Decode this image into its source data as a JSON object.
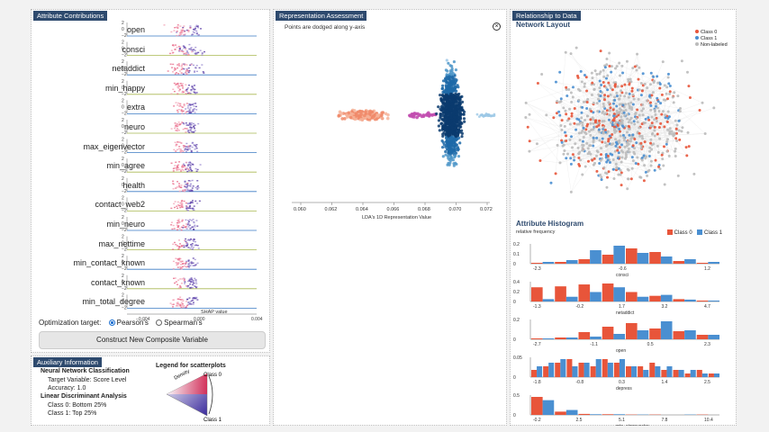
{
  "attr_panel": {
    "title": "Attribute Contributions",
    "attributes": [
      "open",
      "consci",
      "netaddict",
      "min_happy",
      "extra",
      "neuro",
      "max_eigenvector",
      "min_agree",
      "health",
      "contact_web2",
      "min_neuro",
      "max_nettime",
      "min_contact_known",
      "contact_known",
      "min_total_degree"
    ],
    "y_ticks": [
      "2",
      "0",
      "−2"
    ],
    "x_ticks": [
      "−0.004",
      "0.000",
      "0.004"
    ],
    "x_label": "SHAP value",
    "optimization_label": "Optimization target:",
    "option_pearson": "Pearson's",
    "option_spearman": "Spearman's",
    "selected_option": "Pearson's",
    "construct_button": "Construct New Composite Variable"
  },
  "aux_panel": {
    "title": "Auxiliary Information",
    "nn_heading": "Neural Network Classification",
    "nn_target": "Target Variable: Score Level",
    "nn_accuracy": "Accuracy: 1.0",
    "lda_heading": "Linear Discriminant Analysis",
    "lda_class0": "Class 0: Bottom 25%",
    "lda_class1": "Class 1: Top 25%",
    "legend_title": "Legend for scatterplots",
    "legend_density": "Density",
    "legend_class0": "Class 0",
    "legend_class1": "Class 1"
  },
  "rep_panel": {
    "title": "Representation Assessment",
    "note": "Points are dodged along y-axis",
    "close_icon_label": "×",
    "x_ticks": [
      "0.060",
      "0.062",
      "0.064",
      "0.066",
      "0.068",
      "0.070",
      "0.072"
    ],
    "x_label": "LDA's 1D Representation Value"
  },
  "rel_panel": {
    "title": "Relationship to Data",
    "network_heading": "Network Layout",
    "legend": [
      {
        "label": "Class 0",
        "color": "#e8553a"
      },
      {
        "label": "Class 1",
        "color": "#4a8fd1"
      },
      {
        "label": "Non-labeled",
        "color": "#bbbbbb"
      }
    ],
    "histogram_heading": "Attribute Histogram",
    "y_axis_label": "relative frequency",
    "hist_legend_class0": "Class 0",
    "hist_legend_class1": "Class 1",
    "histograms": [
      {
        "name": "consci",
        "x_ticks": [
          "-2.3",
          "-0.6",
          "1.2"
        ],
        "y_ticks": [
          "0.2",
          "0.1",
          "0"
        ],
        "class0": [
          0.01,
          0.02,
          0.05,
          0.1,
          0.17,
          0.13,
          0.03,
          0.01
        ],
        "class1": [
          0.02,
          0.04,
          0.15,
          0.2,
          0.12,
          0.08,
          0.05,
          0.02
        ]
      },
      {
        "name": "netaddict",
        "x_ticks": [
          "-1.3",
          "-0.2",
          "1.7",
          "3.2",
          "4.7"
        ],
        "y_ticks": [
          "0.4",
          "0.2",
          "0"
        ],
        "class0": [
          0.3,
          0.32,
          0.36,
          0.38,
          0.2,
          0.12,
          0.05,
          0.02
        ],
        "class1": [
          0.05,
          0.1,
          0.2,
          0.3,
          0.1,
          0.14,
          0.04,
          0.02
        ]
      },
      {
        "name": "open",
        "x_ticks": [
          "-2.7",
          "-1.1",
          "0.5",
          "2.3"
        ],
        "y_ticks": [
          "0.2",
          "0"
        ],
        "class0": [
          0.01,
          0.02,
          0.08,
          0.14,
          0.18,
          0.12,
          0.09,
          0.05
        ],
        "class1": [
          0.01,
          0.02,
          0.03,
          0.06,
          0.1,
          0.2,
          0.1,
          0.05
        ]
      },
      {
        "name": "depress",
        "x_ticks": [
          "-1.8",
          "-0.8",
          "0.3",
          "1.4",
          "2.5"
        ],
        "y_ticks": [
          "0.05",
          "0"
        ],
        "class0": [
          0.02,
          0.03,
          0.04,
          0.05,
          0.04,
          0.03,
          0.05,
          0.04,
          0.03,
          0.03,
          0.04,
          0.02,
          0.02,
          0.01,
          0.02,
          0.01
        ],
        "class1": [
          0.03,
          0.04,
          0.05,
          0.03,
          0.04,
          0.05,
          0.04,
          0.05,
          0.03,
          0.02,
          0.03,
          0.03,
          0.02,
          0.02,
          0.01,
          0.01
        ]
      },
      {
        "name": "min_eigenvector",
        "x_ticks": [
          "-0.2",
          "2.5",
          "5.1",
          "7.8",
          "10.4"
        ],
        "y_ticks": [
          "0.5",
          "0"
        ],
        "class0": [
          0.55,
          0.1,
          0.03,
          0.02,
          0.01,
          0.01,
          0,
          0.01
        ],
        "class1": [
          0.45,
          0.15,
          0.02,
          0.02,
          0.01,
          0,
          0.01,
          0
        ]
      }
    ]
  },
  "colors": {
    "class0": "#e8553a",
    "class1": "#4a8fd1",
    "header": "#2e4a6e"
  }
}
